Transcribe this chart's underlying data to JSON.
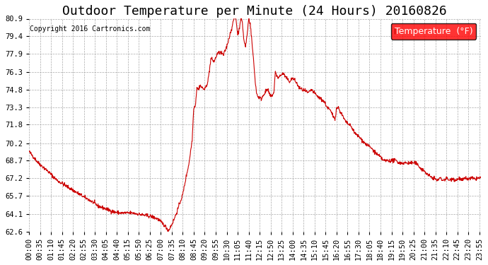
{
  "title": "Outdoor Temperature per Minute (24 Hours) 20160826",
  "copyright": "Copyright 2016 Cartronics.com",
  "legend_label": "Temperature  (°F)",
  "line_color": "#cc0000",
  "background_color": "#ffffff",
  "grid_color": "#aaaaaa",
  "ylim": [
    62.6,
    80.9
  ],
  "yticks": [
    62.6,
    64.1,
    65.7,
    67.2,
    68.7,
    70.2,
    71.8,
    73.3,
    74.8,
    76.3,
    77.9,
    79.4,
    80.9
  ],
  "title_fontsize": 13,
  "axis_fontsize": 7.5,
  "legend_fontsize": 9,
  "keypoints_x": [
    0,
    30,
    60,
    90,
    120,
    150,
    180,
    200,
    220,
    250,
    270,
    290,
    310,
    330,
    350,
    370,
    390,
    410,
    430,
    445,
    460,
    470,
    480,
    490,
    500,
    510,
    520,
    525,
    530,
    535,
    540,
    545,
    550,
    560,
    570,
    580,
    590,
    600,
    610,
    620,
    630,
    640,
    650,
    655,
    660,
    665,
    670,
    675,
    680,
    685,
    690,
    695,
    700,
    705,
    710,
    715,
    720,
    725,
    730,
    740,
    750,
    760,
    770,
    780,
    785,
    790,
    795,
    800,
    810,
    820,
    830,
    840,
    850,
    860,
    870,
    880,
    890,
    900,
    910,
    920,
    930,
    940,
    950,
    960,
    970,
    975,
    980,
    985,
    990,
    1000,
    1010,
    1020,
    1030,
    1040,
    1050,
    1060,
    1070,
    1080,
    1090,
    1100,
    1110,
    1120,
    1130,
    1140,
    1150,
    1160,
    1170,
    1180,
    1190,
    1200,
    1210,
    1220,
    1230,
    1240,
    1250,
    1260,
    1270,
    1280,
    1290,
    1300,
    1310,
    1320,
    1330,
    1340,
    1350,
    1360,
    1370,
    1380,
    1390,
    1400,
    1410,
    1420,
    1430,
    1439
  ],
  "keypoints_y": [
    69.5,
    68.5,
    67.8,
    67.0,
    66.5,
    66.0,
    65.5,
    65.2,
    64.8,
    64.5,
    64.3,
    64.2,
    64.2,
    64.2,
    64.1,
    64.0,
    63.9,
    63.7,
    63.2,
    62.7,
    63.5,
    64.2,
    65.0,
    65.8,
    67.2,
    68.5,
    70.5,
    73.3,
    73.4,
    75.0,
    74.8,
    75.2,
    75.0,
    74.8,
    75.5,
    77.5,
    77.2,
    77.9,
    78.0,
    77.8,
    78.5,
    79.5,
    80.5,
    81.2,
    80.8,
    79.5,
    80.0,
    81.0,
    80.5,
    79.0,
    78.5,
    79.5,
    80.9,
    80.5,
    79.0,
    77.5,
    75.8,
    74.5,
    74.2,
    74.0,
    74.5,
    74.8,
    74.2,
    74.5,
    76.3,
    76.0,
    75.8,
    76.0,
    76.2,
    75.8,
    75.5,
    75.8,
    75.5,
    75.0,
    74.8,
    74.7,
    74.5,
    74.8,
    74.5,
    74.2,
    74.0,
    73.8,
    73.3,
    73.0,
    72.5,
    72.3,
    73.2,
    73.3,
    73.0,
    72.5,
    72.0,
    71.8,
    71.5,
    71.0,
    70.8,
    70.5,
    70.2,
    70.0,
    69.8,
    69.5,
    69.2,
    69.0,
    68.7,
    68.7,
    68.7,
    68.7,
    68.7,
    68.5,
    68.5,
    68.5,
    68.5,
    68.5,
    68.5,
    68.3,
    68.0,
    67.8,
    67.5,
    67.3,
    67.2,
    67.0,
    67.2,
    67.0,
    67.2,
    67.0,
    67.2,
    67.0,
    67.2,
    67.0,
    67.2,
    67.1,
    67.2,
    67.1,
    67.2,
    67.2
  ]
}
